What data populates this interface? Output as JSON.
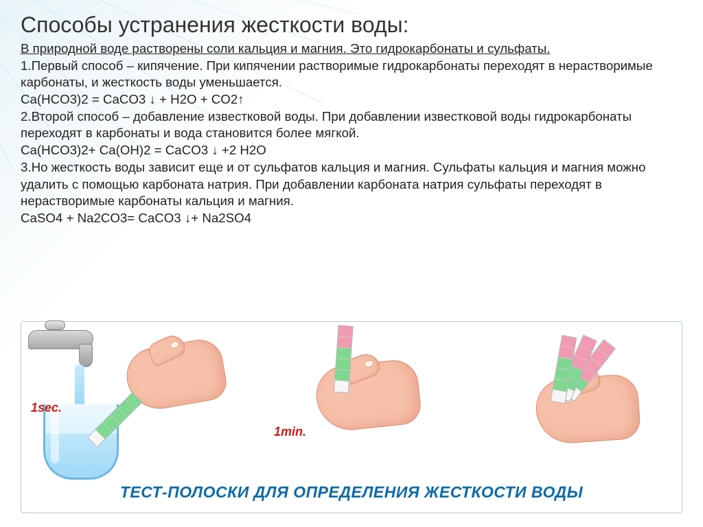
{
  "title": "Способы устранения жесткости воды:",
  "intro": "В природной воде растворены соли кальция и магния. Это гидрокарбонаты и сульфаты.",
  "m1a": "1.Первый способ – кипячение. При кипячении растворимые гидрокарбонаты переходят в нерастворимые карбонаты, и жесткость воды уменьшается.",
  "eq1": "Ca(HCO3)2 = CaCO3  ↓ + H2O + CO2↑",
  "m2a": "2.Второй способ – добавление известковой воды. При добавлении известковой воды гидрокарбонаты переходят в карбонаты и вода становится более мягкой.",
  "eq2": "Ca(HCO3)2+ Ca(OH)2 = CaCO3  ↓ +2 H2O",
  "m3a": "3.Но жесткость воды зависит еще и от сульфатов кальция и магния. Сульфаты кальция и магния можно удалить с помощью карбоната натрия. При добавлении карбоната натрия сульфаты переходят в нерастворимые карбонаты кальция и магния.",
  "eq3": "CaSO4 + Na2CO3= CaCO3  ↓+ Na2SO4",
  "caption": "ТЕСТ-ПОЛОСКИ ДЛЯ ОПРЕДЕЛЕНИЯ ЖЕСТКОСТИ ВОДЫ",
  "time1": "1sec.",
  "time2": "1min.",
  "colors": {
    "pink": "#f29ab0",
    "green": "#7fd88f",
    "white": "#f6f6f6",
    "skin": "#f7c0a8",
    "captionBlue": "#0a6aa8",
    "red": "#d11a1a"
  },
  "strips": {
    "left": [
      "#7fd88f",
      "#7fd88f",
      "#7fd88f",
      "#7fd88f",
      "#7fd88f",
      "#f6f6f6"
    ],
    "center": [
      "#f29ab0",
      "#f29ab0",
      "#7fd88f",
      "#7fd88f",
      "#7fd88f",
      "#f6f6f6"
    ],
    "right1": [
      "#f29ab0",
      "#f29ab0",
      "#f29ab0",
      "#f29ab0",
      "#7fd88f",
      "#f6f6f6"
    ],
    "right2": [
      "#f29ab0",
      "#f29ab0",
      "#f29ab0",
      "#7fd88f",
      "#7fd88f",
      "#f6f6f6"
    ],
    "right3": [
      "#f29ab0",
      "#f29ab0",
      "#7fd88f",
      "#7fd88f",
      "#7fd88f",
      "#f6f6f6"
    ]
  }
}
